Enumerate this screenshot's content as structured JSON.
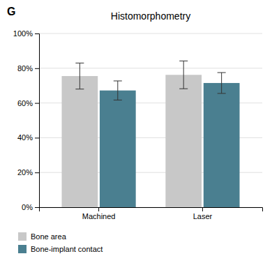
{
  "chart_data": {
    "type": "bar",
    "title": "Histomorphometry",
    "annotations": [
      "G"
    ],
    "categories": [
      "Machined",
      "Laser"
    ],
    "series": [
      {
        "name": "Bone area",
        "color": "#c8c8c8",
        "values": [
          0.755,
          0.762
        ],
        "errors": [
          0.075,
          0.08
        ]
      },
      {
        "name": "Bone-implant contact",
        "color": "#4a7f90",
        "values": [
          0.672,
          0.715
        ],
        "errors": [
          0.055,
          0.06
        ]
      }
    ],
    "ylim": [
      0,
      1.0
    ],
    "yticks": [
      {
        "value": 0,
        "label": "0%"
      },
      {
        "value": 0.2,
        "label": "20%"
      },
      {
        "value": 0.4,
        "label": "40%"
      },
      {
        "value": 0.6,
        "label": "60%"
      },
      {
        "value": 0.8,
        "label": "80%"
      },
      {
        "value": 1.0,
        "label": "100%"
      }
    ],
    "grid": true,
    "legend": "bottom"
  }
}
